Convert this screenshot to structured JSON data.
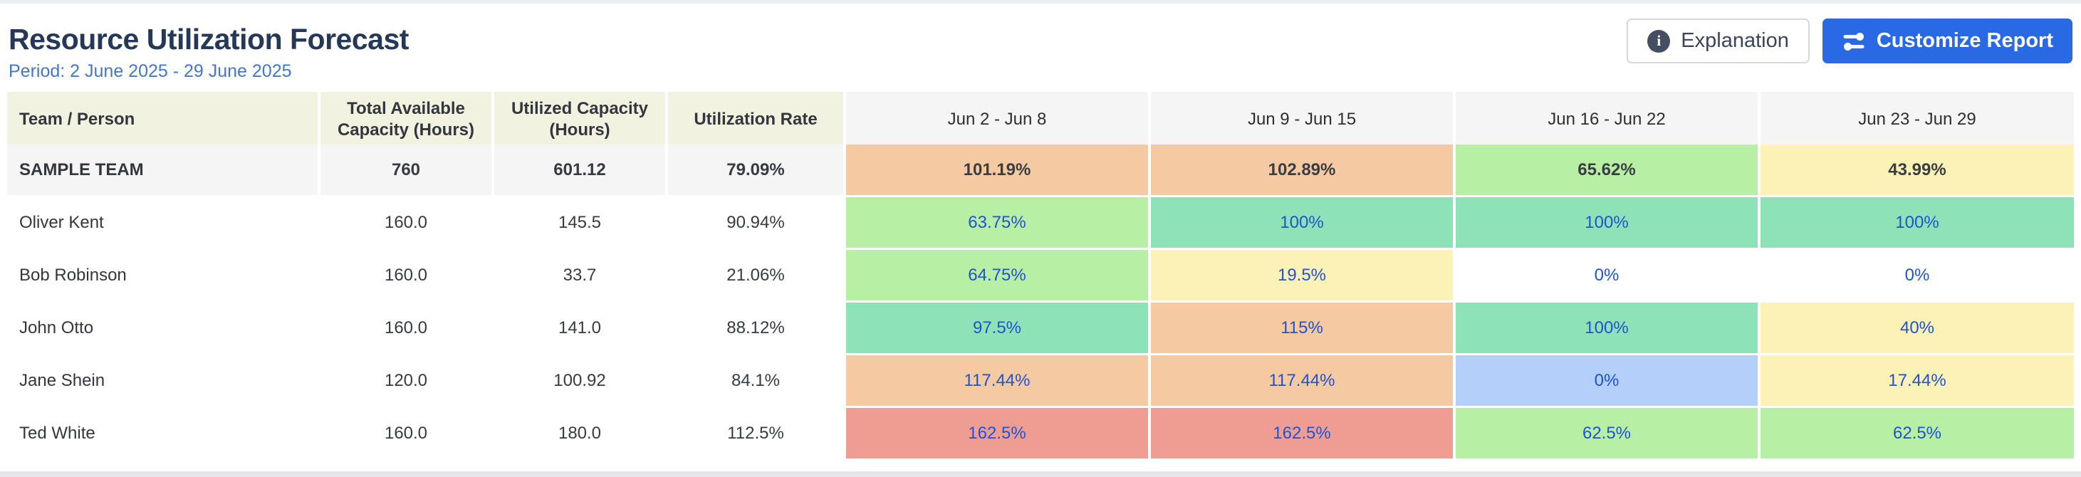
{
  "header": {
    "title": "Resource Utilization Forecast",
    "period": "Period: 2 June 2025 - 29 June 2025",
    "buttons": {
      "explanation": "Explanation",
      "explanation_icon": "info-icon",
      "customize": "Customize Report",
      "customize_icon": "sliders-icon"
    }
  },
  "theme": {
    "accent": "#2969E3",
    "link": "#2153CF",
    "title_color": "#253858",
    "period_color": "#4377C8",
    "cell_colors": {
      "orange": "#F5C9A1",
      "teal": "#8DE3B7",
      "green": "#B7F0A4",
      "yellow": "#FCF2B5",
      "red": "#EF9D93",
      "blue": "#B3CFFA",
      "white": "#FFFFFF"
    }
  },
  "table": {
    "columns": [
      "Team / Person",
      "Total Available Capacity (Hours)",
      "Utilized Capacity (Hours)",
      "Utilization Rate"
    ],
    "week_columns": [
      "Jun 2 - Jun 8",
      "Jun 9 - Jun 15",
      "Jun 16 - Jun 22",
      "Jun 23 - Jun 29"
    ],
    "rows": [
      {
        "name": "SAMPLE TEAM",
        "type": "team",
        "available": "760",
        "utilized": "601.12",
        "rate": "79.09%",
        "weeks": [
          {
            "value": "101.19%",
            "color": "orange"
          },
          {
            "value": "102.89%",
            "color": "orange"
          },
          {
            "value": "65.62%",
            "color": "green"
          },
          {
            "value": "43.99%",
            "color": "yellow"
          }
        ]
      },
      {
        "name": "Oliver Kent",
        "type": "person",
        "available": "160.0",
        "utilized": "145.5",
        "rate": "90.94%",
        "weeks": [
          {
            "value": "63.75%",
            "color": "green"
          },
          {
            "value": "100%",
            "color": "teal"
          },
          {
            "value": "100%",
            "color": "teal"
          },
          {
            "value": "100%",
            "color": "teal"
          }
        ]
      },
      {
        "name": "Bob Robinson",
        "type": "person",
        "available": "160.0",
        "utilized": "33.7",
        "rate": "21.06%",
        "weeks": [
          {
            "value": "64.75%",
            "color": "green"
          },
          {
            "value": "19.5%",
            "color": "yellow"
          },
          {
            "value": "0%",
            "color": "white"
          },
          {
            "value": "0%",
            "color": "white"
          }
        ]
      },
      {
        "name": "John Otto",
        "type": "person",
        "available": "160.0",
        "utilized": "141.0",
        "rate": "88.12%",
        "weeks": [
          {
            "value": "97.5%",
            "color": "teal"
          },
          {
            "value": "115%",
            "color": "orange"
          },
          {
            "value": "100%",
            "color": "teal"
          },
          {
            "value": "40%",
            "color": "yellow"
          }
        ]
      },
      {
        "name": "Jane Shein",
        "type": "person",
        "available": "120.0",
        "utilized": "100.92",
        "rate": "84.1%",
        "weeks": [
          {
            "value": "117.44%",
            "color": "orange"
          },
          {
            "value": "117.44%",
            "color": "orange"
          },
          {
            "value": "0%",
            "color": "blue"
          },
          {
            "value": "17.44%",
            "color": "yellow"
          }
        ]
      },
      {
        "name": "Ted White",
        "type": "person",
        "available": "160.0",
        "utilized": "180.0",
        "rate": "112.5%",
        "weeks": [
          {
            "value": "162.5%",
            "color": "red"
          },
          {
            "value": "162.5%",
            "color": "red"
          },
          {
            "value": "62.5%",
            "color": "green"
          },
          {
            "value": "62.5%",
            "color": "green"
          }
        ]
      }
    ]
  }
}
